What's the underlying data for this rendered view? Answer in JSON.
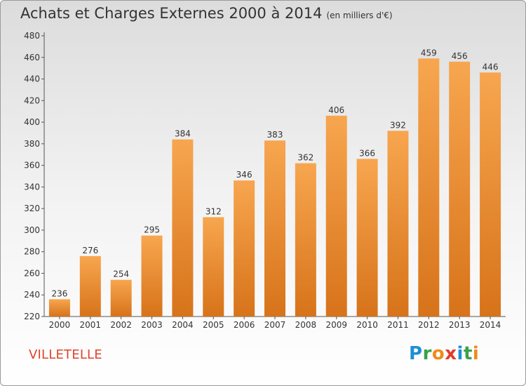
{
  "title": "Achats et Charges Externes 2000 à 2014",
  "unit_label": "(en milliers d'€)",
  "commune": "VILLETELLE",
  "logo_letters": [
    "P",
    "r",
    "o",
    "x",
    "i",
    "t",
    "i"
  ],
  "colors": {
    "bar_light": "#f7a64f",
    "bar_dark": "#d7731a",
    "text": "#333333",
    "commune": "#e0442e",
    "logo": [
      "#1e8fd6",
      "#3aa14a",
      "#f08a1a",
      "#e23a2a",
      "#1e8fd6",
      "#3aa14a",
      "#f08a1a"
    ]
  },
  "chart_data": {
    "type": "bar",
    "title": "Achats et Charges Externes 2000 à 2014",
    "xlabel": "",
    "ylabel": "",
    "categories": [
      "2000",
      "2001",
      "2002",
      "2003",
      "2004",
      "2005",
      "2006",
      "2007",
      "2008",
      "2009",
      "2010",
      "2011",
      "2012",
      "2013",
      "2014"
    ],
    "values": [
      236,
      276,
      254,
      295,
      384,
      312,
      346,
      383,
      362,
      406,
      366,
      392,
      459,
      456,
      446
    ],
    "ylim": [
      220,
      480
    ],
    "yticks": [
      220,
      240,
      260,
      280,
      300,
      320,
      340,
      360,
      380,
      400,
      420,
      440,
      460,
      480
    ],
    "grid": false,
    "legend": "none"
  }
}
